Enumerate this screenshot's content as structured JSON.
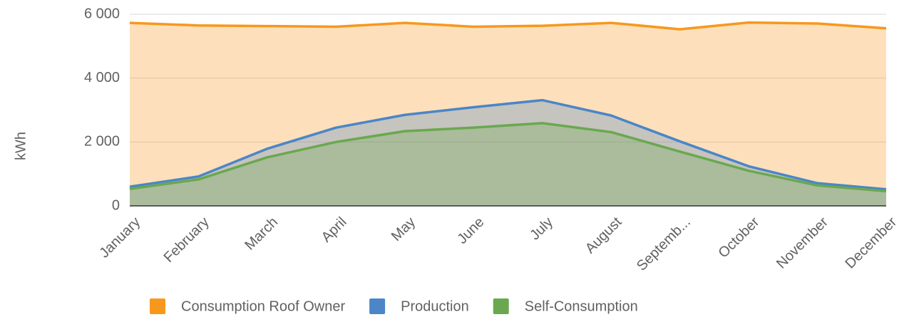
{
  "chart_data": {
    "type": "area",
    "y_label": "kWh",
    "categories": [
      "January",
      "February",
      "March",
      "April",
      "May",
      "June",
      "July",
      "August",
      "Septemb...",
      "October",
      "November",
      "December"
    ],
    "series": [
      {
        "name": "Consumption Roof Owner",
        "color": "#f7981d",
        "values": [
          5730,
          5650,
          5630,
          5610,
          5730,
          5610,
          5640,
          5730,
          5530,
          5740,
          5710,
          5560
        ]
      },
      {
        "name": "Production",
        "color": "#4a86c8",
        "values": [
          600,
          920,
          1790,
          2450,
          2850,
          3090,
          3310,
          2830,
          2020,
          1240,
          710,
          520
        ]
      },
      {
        "name": "Self-Consumption",
        "color": "#6aa84f",
        "values": [
          530,
          830,
          1520,
          2000,
          2340,
          2450,
          2590,
          2310,
          1700,
          1100,
          640,
          460
        ]
      }
    ],
    "ylim": [
      0,
      6000
    ],
    "yticks": [
      {
        "value": 0,
        "label": "0"
      },
      {
        "value": 2000,
        "label": "2 000"
      },
      {
        "value": 4000,
        "label": "4 000"
      },
      {
        "value": 6000,
        "label": "6 000"
      }
    ],
    "grid": true,
    "legend": "bottom"
  }
}
